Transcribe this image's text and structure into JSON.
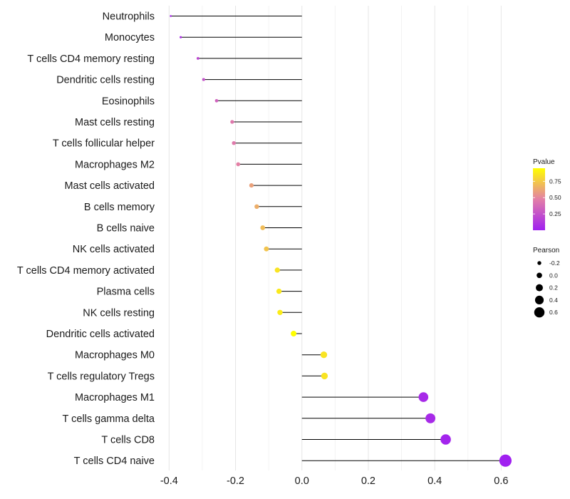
{
  "chart_data": {
    "type": "lollipop",
    "title": "",
    "xlabel": "",
    "ylabel": "",
    "xlim": [
      -0.42,
      0.64
    ],
    "xticks": [
      -0.4,
      -0.2,
      0.0,
      0.2,
      0.4,
      0.6
    ],
    "xtick_labels": [
      "-0.4",
      "-0.2",
      "0.0",
      "0.2",
      "0.4",
      "0.6"
    ],
    "grid": true,
    "categories": [
      "Neutrophils",
      "Monocytes",
      "T cells CD4 memory resting",
      "Dendritic cells resting",
      "Eosinophils",
      "Mast cells resting",
      "T cells follicular helper",
      "Macrophages M2",
      "Mast cells activated",
      "B cells memory",
      "B cells naive",
      "NK cells activated",
      "T cells CD4 memory activated",
      "Plasma cells",
      "NK cells resting",
      "Dendritic cells activated",
      "Macrophages M0",
      "T cells regulatory  Tregs ",
      "Macrophages M1",
      "T cells gamma delta",
      "T cells CD8",
      "T cells CD4 naive"
    ],
    "pearson": [
      -0.395,
      -0.365,
      -0.313,
      -0.296,
      -0.257,
      -0.21,
      -0.205,
      -0.192,
      -0.152,
      -0.136,
      -0.118,
      -0.107,
      -0.074,
      -0.069,
      -0.066,
      -0.025,
      0.066,
      0.068,
      0.366,
      0.387,
      0.433,
      0.613
    ],
    "pvalue": [
      0.06,
      0.08,
      0.2,
      0.25,
      0.33,
      0.44,
      0.45,
      0.48,
      0.6,
      0.65,
      0.7,
      0.73,
      0.85,
      0.87,
      0.88,
      0.97,
      0.85,
      0.85,
      0.05,
      0.05,
      0.02,
      0.0
    ],
    "legend": {
      "pvalue": {
        "title": "Pvalue",
        "ticks": [
          0.25,
          0.5,
          0.75
        ],
        "tick_labels": [
          "0.25",
          "0.50",
          "0.75"
        ],
        "range": [
          0.0,
          0.95
        ],
        "colors": [
          "#a020f0",
          "#e37fa7",
          "#ffff00"
        ]
      },
      "pearson": {
        "title": "Pearson",
        "values": [
          -0.2,
          0.0,
          0.2,
          0.4,
          0.6
        ],
        "labels": [
          "-0.2",
          "0.0",
          "0.2",
          "0.4",
          "0.6"
        ]
      }
    }
  }
}
